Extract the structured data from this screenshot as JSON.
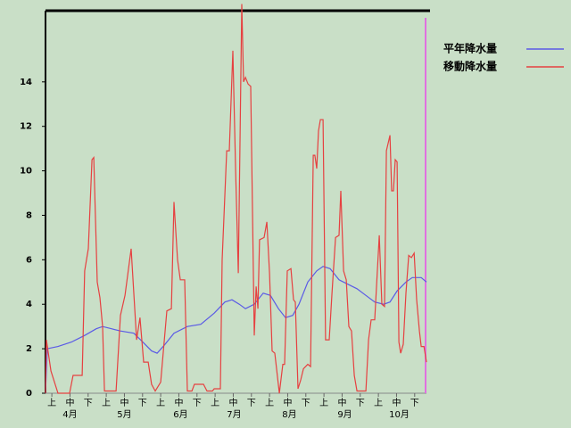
{
  "chart_data": {
    "type": "line",
    "xlim": [
      0,
      21
    ],
    "ylim": [
      0,
      17.2
    ],
    "yticks": [
      0,
      2,
      4,
      6,
      8,
      10,
      12,
      14
    ],
    "xticks": [
      {
        "value": 0.35,
        "label": "上"
      },
      {
        "value": 1.35,
        "label": "中"
      },
      {
        "value": 2.35,
        "label": "下"
      },
      {
        "value": 3.35,
        "label": "上"
      },
      {
        "value": 4.35,
        "label": "中"
      },
      {
        "value": 5.35,
        "label": "下"
      },
      {
        "value": 6.35,
        "label": "上"
      },
      {
        "value": 7.35,
        "label": "中"
      },
      {
        "value": 8.35,
        "label": "下"
      },
      {
        "value": 9.35,
        "label": "上"
      },
      {
        "value": 10.35,
        "label": "中"
      },
      {
        "value": 11.35,
        "label": "下"
      },
      {
        "value": 12.35,
        "label": "上"
      },
      {
        "value": 13.35,
        "label": "中"
      },
      {
        "value": 14.35,
        "label": "下"
      },
      {
        "value": 15.35,
        "label": "上"
      },
      {
        "value": 16.35,
        "label": "中"
      },
      {
        "value": 17.35,
        "label": "下"
      },
      {
        "value": 18.35,
        "label": "上"
      },
      {
        "value": 19.35,
        "label": "中"
      },
      {
        "value": 20.35,
        "label": "下"
      }
    ],
    "month_ticks": [
      {
        "value": 1.35,
        "label": "4月"
      },
      {
        "value": 4.35,
        "label": "5月"
      },
      {
        "value": 7.45,
        "label": "6月"
      },
      {
        "value": 10.4,
        "label": "7月"
      },
      {
        "value": 13.45,
        "label": "8月"
      },
      {
        "value": 16.5,
        "label": "9月"
      },
      {
        "value": 19.5,
        "label": "10月"
      }
    ],
    "series": [
      {
        "name": "平年降水量",
        "color": "#5a5ae6",
        "x": [
          0,
          0.1,
          0.69,
          1.43,
          2.16,
          2.8,
          3.15,
          3.64,
          4.13,
          4.87,
          5.36,
          5.85,
          6.15,
          6.59,
          7.08,
          7.82,
          8.56,
          9.3,
          9.89,
          10.28,
          10.68,
          11.02,
          11.51,
          12.0,
          12.4,
          12.84,
          13.23,
          13.63,
          13.97,
          14.46,
          14.95,
          15.3,
          15.69,
          16.18,
          16.67,
          17.17,
          17.66,
          18.15,
          18.64,
          18.99,
          19.38,
          19.87,
          20.22,
          20.71,
          21.0
        ],
        "values": [
          0,
          2.0,
          2.1,
          2.3,
          2.6,
          2.9,
          3.0,
          2.9,
          2.8,
          2.7,
          2.3,
          1.9,
          1.8,
          2.2,
          2.7,
          3.0,
          3.1,
          3.6,
          4.1,
          4.2,
          4.0,
          3.8,
          4.0,
          4.5,
          4.4,
          3.8,
          3.4,
          3.5,
          4.0,
          5.0,
          5.5,
          5.7,
          5.6,
          5.1,
          4.9,
          4.7,
          4.4,
          4.1,
          4.0,
          4.1,
          4.6,
          5.0,
          5.2,
          5.2,
          5.0
        ]
      },
      {
        "name": "移動降水量",
        "color": "#e64040",
        "x": [
          0,
          0.05,
          0.3,
          0.69,
          1.33,
          1.52,
          2.02,
          2.16,
          2.36,
          2.56,
          2.66,
          2.85,
          3.0,
          3.15,
          3.25,
          3.89,
          4.13,
          4.38,
          4.72,
          5.02,
          5.21,
          5.41,
          5.66,
          5.85,
          6.05,
          6.35,
          6.69,
          6.94,
          7.08,
          7.28,
          7.43,
          7.67,
          7.82,
          8.07,
          8.21,
          8.71,
          8.9,
          9.2,
          9.3,
          9.64,
          9.74,
          9.99,
          10.13,
          10.33,
          10.48,
          10.63,
          10.82,
          10.92,
          11.02,
          11.17,
          11.31,
          11.51,
          11.61,
          11.71,
          11.8,
          12.05,
          12.2,
          12.35,
          12.49,
          12.64,
          12.89,
          13.08,
          13.18,
          13.33,
          13.53,
          13.67,
          13.77,
          13.92,
          14.07,
          14.22,
          14.46,
          14.61,
          14.76,
          14.85,
          14.95,
          15.05,
          15.15,
          15.3,
          15.44,
          15.64,
          15.79,
          15.99,
          16.18,
          16.28,
          16.43,
          16.58,
          16.72,
          16.87,
          17.02,
          17.17,
          17.66,
          17.81,
          17.95,
          18.15,
          18.4,
          18.54,
          18.69,
          18.79,
          18.99,
          19.08,
          19.18,
          19.28,
          19.38,
          19.48,
          19.58,
          19.72,
          19.87,
          20.02,
          20.17,
          20.32,
          20.46,
          20.61,
          20.71,
          20.86,
          21.0
        ],
        "values": [
          0,
          2.4,
          1.0,
          0,
          0,
          0.8,
          0.8,
          5.5,
          6.5,
          10.5,
          10.6,
          5.0,
          4.3,
          3.0,
          0.1,
          0.1,
          3.5,
          4.4,
          6.5,
          2.4,
          3.4,
          1.4,
          1.4,
          0.4,
          0.1,
          0.5,
          3.7,
          3.8,
          8.6,
          6.0,
          5.1,
          5.1,
          0.1,
          0.1,
          0.4,
          0.4,
          0.1,
          0.1,
          0.2,
          0.2,
          6.0,
          10.9,
          10.9,
          15.4,
          10.0,
          5.4,
          17.5,
          14.0,
          14.2,
          13.9,
          13.8,
          2.6,
          4.8,
          3.8,
          6.9,
          7.0,
          7.7,
          5.4,
          1.9,
          1.8,
          0,
          1.3,
          1.3,
          5.5,
          5.6,
          4.2,
          4.1,
          0.2,
          0.6,
          1.1,
          1.3,
          1.2,
          10.7,
          10.7,
          10.1,
          11.8,
          12.3,
          12.3,
          2.4,
          2.4,
          4.5,
          7.0,
          7.1,
          9.1,
          5.5,
          5.1,
          3.0,
          2.8,
          0.8,
          0.1,
          0.1,
          2.4,
          3.3,
          3.3,
          7.1,
          4.0,
          3.9,
          10.9,
          11.6,
          9.1,
          9.1,
          10.5,
          10.4,
          2.3,
          1.8,
          2.2,
          4.5,
          6.2,
          6.1,
          6.3,
          4.2,
          2.8,
          2.1,
          2.1,
          1.4
        ]
      }
    ]
  }
}
